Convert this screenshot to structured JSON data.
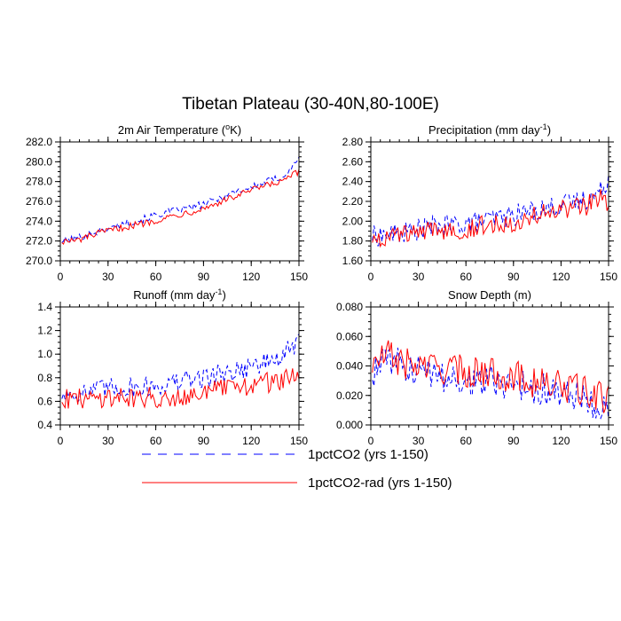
{
  "figure": {
    "title": "Tibetan Plateau (30-40N,80-100E)",
    "legend_placement": "bottom-center",
    "series_styles": [
      {
        "name": "1pctCO2 (yrs 1-150)",
        "color": "#0000ff",
        "dash": "dashed"
      },
      {
        "name": "1pctCO2-rad (yrs 1-150)",
        "color": "#ff0000",
        "dash": "solid"
      }
    ]
  },
  "chart_data": [
    {
      "type": "line",
      "title": "2m Air Temperature (°K)",
      "title_parts": [
        "2m Air Temperature (",
        "o",
        "K)"
      ],
      "xlim": [
        0,
        150
      ],
      "ylim": [
        270,
        282
      ],
      "xticks": [
        0,
        30,
        60,
        90,
        120,
        150
      ],
      "xtick_labels": [
        "0",
        "30",
        "60",
        "90",
        "120",
        "150"
      ],
      "yticks": [
        270,
        272,
        274,
        276,
        278,
        280,
        282
      ],
      "ytick_labels": [
        "270.0",
        "272.0",
        "274.0",
        "276.0",
        "278.0",
        "280.0",
        "282.0"
      ],
      "grid": false,
      "series": [
        {
          "name": "1pctCO2 (yrs 1-150)",
          "x": [
            1,
            10,
            20,
            30,
            40,
            50,
            60,
            70,
            80,
            90,
            100,
            110,
            120,
            130,
            140,
            145,
            150
          ],
          "values": [
            272.0,
            272.3,
            272.8,
            273.2,
            273.8,
            274.1,
            274.6,
            275.0,
            275.3,
            275.7,
            276.3,
            277.0,
            277.4,
            278.0,
            278.5,
            279.2,
            280.6
          ]
        },
        {
          "name": "1pctCO2-rad (yrs 1-150)",
          "x": [
            1,
            10,
            20,
            30,
            40,
            50,
            60,
            70,
            80,
            90,
            100,
            110,
            120,
            130,
            140,
            145,
            150
          ],
          "values": [
            272.0,
            272.0,
            272.6,
            273.0,
            273.4,
            273.7,
            274.1,
            274.5,
            274.9,
            275.3,
            275.9,
            276.5,
            277.1,
            277.6,
            278.0,
            278.6,
            278.9
          ]
        }
      ]
    },
    {
      "type": "line",
      "title": "Precipitation (mm day-1)",
      "title_parts": [
        "Precipitation (mm day",
        "-1",
        ")"
      ],
      "xlim": [
        0,
        150
      ],
      "ylim": [
        1.6,
        2.8
      ],
      "xticks": [
        0,
        30,
        60,
        90,
        120,
        150
      ],
      "xtick_labels": [
        "0",
        "30",
        "60",
        "90",
        "120",
        "150"
      ],
      "yticks": [
        1.6,
        1.8,
        2.0,
        2.2,
        2.4,
        2.6,
        2.8
      ],
      "ytick_labels": [
        "1.60",
        "1.80",
        "2.00",
        "2.20",
        "2.40",
        "2.60",
        "2.80"
      ],
      "grid": false,
      "series": [
        {
          "name": "1pctCO2 (yrs 1-150)",
          "x": [
            1,
            10,
            20,
            30,
            40,
            50,
            60,
            70,
            80,
            90,
            100,
            110,
            120,
            130,
            140,
            145,
            150
          ],
          "values": [
            1.85,
            1.86,
            1.88,
            1.92,
            1.95,
            1.96,
            1.98,
            2.0,
            2.03,
            2.06,
            2.1,
            2.13,
            2.16,
            2.2,
            2.25,
            2.3,
            2.45
          ]
        },
        {
          "name": "1pctCO2-rad (yrs 1-150)",
          "x": [
            1,
            10,
            20,
            30,
            40,
            50,
            60,
            70,
            80,
            90,
            100,
            110,
            120,
            130,
            140,
            145,
            150
          ],
          "values": [
            1.83,
            1.84,
            1.86,
            1.88,
            1.9,
            1.92,
            1.93,
            1.95,
            1.98,
            2.0,
            2.04,
            2.08,
            2.1,
            2.13,
            2.18,
            2.25,
            2.2
          ]
        }
      ]
    },
    {
      "type": "line",
      "title": "Runoff (mm day-1)",
      "title_parts": [
        "Runoff (mm day",
        "-1",
        ")"
      ],
      "xlim": [
        0,
        150
      ],
      "ylim": [
        0.4,
        1.4
      ],
      "xticks": [
        0,
        30,
        60,
        90,
        120,
        150
      ],
      "xtick_labels": [
        "0",
        "30",
        "60",
        "90",
        "120",
        "150"
      ],
      "yticks": [
        0.4,
        0.6,
        0.8,
        1.0,
        1.2,
        1.4
      ],
      "ytick_labels": [
        "0.4",
        "0.6",
        "0.8",
        "1.0",
        "1.2",
        "1.4"
      ],
      "grid": false,
      "series": [
        {
          "name": "1pctCO2 (yrs 1-150)",
          "x": [
            1,
            10,
            20,
            30,
            40,
            50,
            60,
            70,
            80,
            90,
            100,
            110,
            120,
            130,
            140,
            145,
            150
          ],
          "values": [
            0.66,
            0.67,
            0.69,
            0.71,
            0.72,
            0.72,
            0.73,
            0.75,
            0.78,
            0.8,
            0.83,
            0.86,
            0.9,
            0.93,
            0.98,
            1.05,
            1.1
          ]
        },
        {
          "name": "1pctCO2-rad (yrs 1-150)",
          "x": [
            1,
            10,
            20,
            30,
            40,
            50,
            60,
            70,
            80,
            90,
            100,
            110,
            120,
            130,
            140,
            145,
            150
          ],
          "values": [
            0.63,
            0.62,
            0.63,
            0.64,
            0.64,
            0.63,
            0.63,
            0.64,
            0.66,
            0.68,
            0.7,
            0.72,
            0.74,
            0.76,
            0.78,
            0.82,
            0.78
          ]
        }
      ]
    },
    {
      "type": "line",
      "title": "Snow Depth (m)",
      "title_parts": [
        "Snow Depth (m)",
        "",
        ""
      ],
      "xlim": [
        0,
        150
      ],
      "ylim": [
        0.0,
        0.08
      ],
      "xticks": [
        0,
        30,
        60,
        90,
        120,
        150
      ],
      "xtick_labels": [
        "0",
        "30",
        "60",
        "90",
        "120",
        "150"
      ],
      "yticks": [
        0.0,
        0.02,
        0.04,
        0.06,
        0.08
      ],
      "ytick_labels": [
        "0.000",
        "0.020",
        "0.040",
        "0.060",
        "0.080"
      ],
      "grid": false,
      "series": [
        {
          "name": "1pctCO2 (yrs 1-150)",
          "x": [
            1,
            10,
            20,
            30,
            40,
            50,
            60,
            70,
            80,
            90,
            100,
            110,
            120,
            130,
            140,
            145,
            150
          ],
          "values": [
            0.035,
            0.045,
            0.04,
            0.036,
            0.034,
            0.032,
            0.03,
            0.03,
            0.029,
            0.028,
            0.026,
            0.024,
            0.022,
            0.02,
            0.016,
            0.014,
            0.011
          ]
        },
        {
          "name": "1pctCO2-rad (yrs 1-150)",
          "x": [
            1,
            10,
            20,
            30,
            40,
            50,
            60,
            70,
            80,
            90,
            100,
            110,
            120,
            130,
            140,
            145,
            150
          ],
          "values": [
            0.04,
            0.048,
            0.042,
            0.04,
            0.039,
            0.038,
            0.036,
            0.036,
            0.035,
            0.033,
            0.03,
            0.028,
            0.026,
            0.024,
            0.02,
            0.018,
            0.02
          ]
        }
      ]
    }
  ]
}
